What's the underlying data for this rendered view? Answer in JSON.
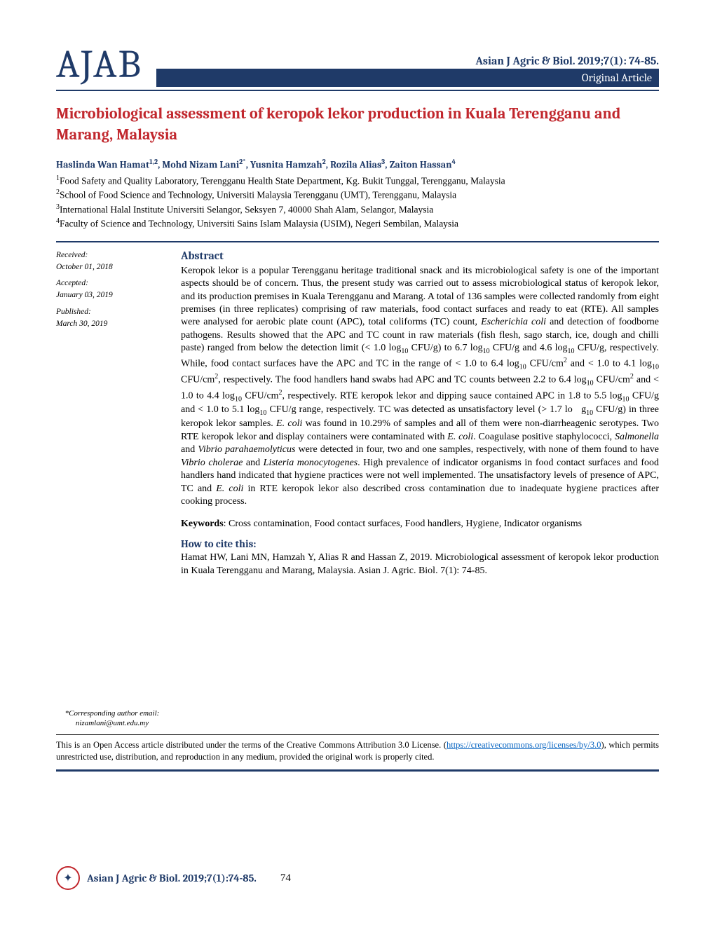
{
  "header": {
    "logo": "AJAB",
    "citation_top": "Asian J Agric & Biol. 2019;7(1): 74-85.",
    "article_type": "Original Article"
  },
  "title": "Microbiological assessment of keropok lekor production in Kuala Terengganu and Marang, Malaysia",
  "authors_html": "Haslinda Wan Hamat<sup>1,2</sup>, Mohd Nizam Lani<sup>2*</sup>, Yusnita Hamzah<sup>2</sup>, Rozila Alias<sup>3</sup>, Zaiton Hassan<sup>4</sup>",
  "affiliations": [
    "<sup>1</sup>Food Safety and Quality Laboratory, Terengganu Health State Department, Kg. Bukit Tunggal, Terengganu, Malaysia",
    "<sup>2</sup>School of Food Science and Technology, Universiti Malaysia Terengganu (UMT), Terengganu, Malaysia",
    "<sup>3</sup>International Halal Institute Universiti Selangor, Seksyen 7, 40000 Shah Alam, Selangor, Malaysia",
    "<sup>4</sup>Faculty of Science and Technology, Universiti Sains Islam Malaysia (USIM), Negeri Sembilan, Malaysia"
  ],
  "dates": {
    "received_label": "Received:",
    "received": "October 01, 2018",
    "accepted_label": "Accepted:",
    "accepted": "January 03, 2019",
    "published_label": "Published:",
    "published": "March 30, 2019"
  },
  "corresponding": {
    "label": "*Corresponding author email:",
    "email": "nizamlani@umt.edu.my"
  },
  "abstract": {
    "heading": "Abstract",
    "body_html": "Keropok lekor is a popular Terengganu heritage traditional snack and its microbiological safety is one of the important aspects should be of concern. Thus, the present study was carried out to assess microbiological status of keropok lekor, and its production premises in Kuala Terengganu and Marang. A total of 136 samples were collected randomly from eight premises (in three replicates) comprising of raw materials, food contact surfaces and ready to eat (RTE). All samples were analysed for aerobic plate count (APC), total coliforms (TC) count, <em>Escherichia coli</em> and detection of foodborne pathogens. Results showed that the APC and TC count in raw materials (fish flesh, sago starch, ice, dough and chilli paste) ranged from below the detection limit (&lt; 1.0 log<sub>10</sub> CFU/g) to 6.7 log<sub>10</sub> CFU/g and 4.6 log<sub>10</sub> CFU/g, respectively. While, food contact surfaces have the APC and TC in the range of &lt; 1.0 to 6.4 log<sub>10</sub> CFU/cm<sup>2</sup> and &lt; 1.0 to 4.1 log<sub>10</sub> CFU/cm<sup>2</sup>, respectively. The food handlers hand swabs had APC and TC counts between 2.2 to 6.4 log<sub>10</sub> CFU/cm<sup>2</sup> and &lt; 1.0 to 4.4 log<sub>10</sub> CFU/cm<sup>2</sup>, respectively. RTE keropok lekor and dipping sauce contained APC in 1.8 to 5.5 log<sub>10</sub> CFU/g and &lt; 1.0 to 5.1 log<sub>10</sub> CFU/g range, respectively. TC was detected as unsatisfactory level (&gt; 1.7 lo&nbsp;&nbsp;&nbsp;g<sub>10</sub> CFU/g) in three keropok lekor samples. <em>E. coli</em> was found in 10.29% of samples and all of them were non-diarrheagenic serotypes. Two RTE keropok lekor and display containers were contaminated with <em>E. coli</em>. Coagulase positive staphylococci, <em>Salmonella</em> and <em>Vibrio parahaemolyticus</em> were detected in four, two and one samples, respectively, with none of them found to have <em>Vibrio cholerae</em> and <em>Listeria monocytogenes</em>. High prevalence of indicator organisms in food contact surfaces and food handlers hand indicated that hygiene practices were not well implemented. The unsatisfactory levels of presence of APC, TC and <em>E. coli</em> in RTE keropok lekor also described cross contamination due to inadequate hygiene practices after cooking process."
  },
  "keywords": {
    "label": "Keywords",
    "text": ": Cross contamination, Food contact surfaces, Food handlers, Hygiene, Indicator organisms"
  },
  "cite": {
    "heading": "How to cite this:",
    "text": "Hamat HW, Lani MN, Hamzah Y, Alias R and Hassan Z, 2019. Microbiological assessment of keropok lekor production in Kuala Terengganu and Marang, Malaysia. Asian J. Agric. Biol. 7(1): 74-85."
  },
  "license": {
    "prefix": "This is an Open Access article distributed under the terms of the Creative Commons Attribution 3.0 License. (",
    "url_text": "https://creativecommons.org/licenses/by/3.0",
    "suffix": "), which permits unrestricted use, distribution, and reproduction in any medium, provided the original work is properly cited."
  },
  "footer": {
    "citation": "Asian J Agric & Biol. 2019;7(1):74-85.",
    "page": "74"
  },
  "colors": {
    "brand_blue": "#1f3a68",
    "brand_red": "#c1272d",
    "link_blue": "#0563c1",
    "background": "#ffffff",
    "text": "#000000"
  },
  "typography": {
    "body_font": "Times New Roman",
    "heading_font": "Cambria",
    "logo_fontsize": 56,
    "title_fontsize": 22,
    "body_fontsize": 14,
    "small_fontsize": 11.5
  }
}
